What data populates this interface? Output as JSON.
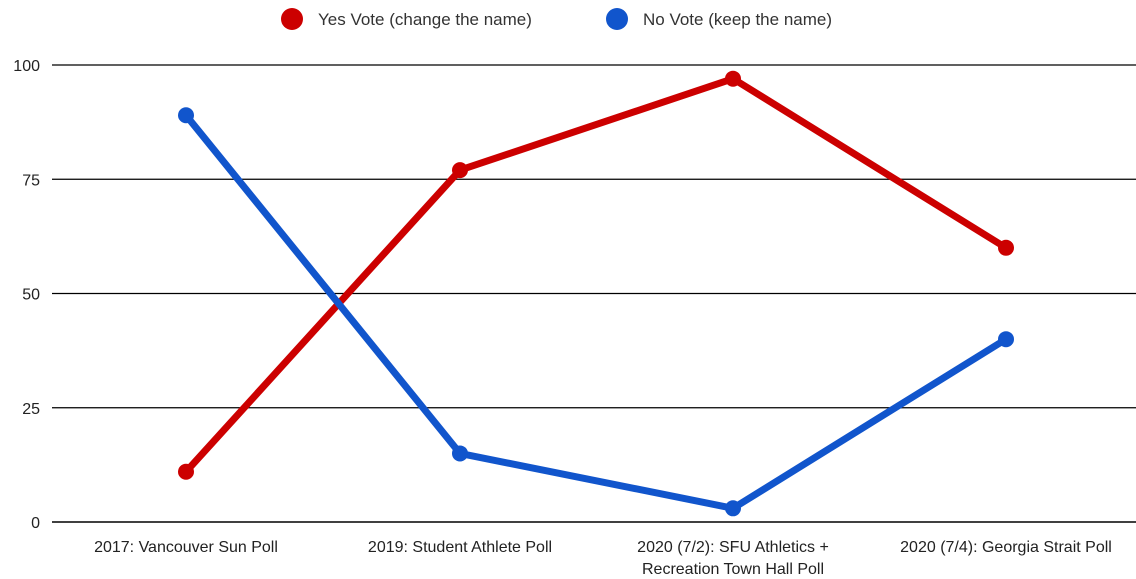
{
  "chart_data": {
    "type": "line",
    "categories": [
      "2017: Vancouver Sun Poll",
      "2019: Student Athlete Poll",
      "2020 (7/2): SFU Athletics + Recreation Town Hall Poll",
      "2020 (7/4): Georgia Strait Poll"
    ],
    "category_lines": [
      [
        "2017: Vancouver Sun Poll"
      ],
      [
        "2019: Student Athlete Poll"
      ],
      [
        "2020 (7/2): SFU Athletics +",
        "Recreation Town Hall Poll"
      ],
      [
        "2020 (7/4): Georgia Strait Poll"
      ]
    ],
    "series": [
      {
        "name": "Yes Vote (change the name)",
        "color": "#cc0000",
        "values": [
          11,
          77,
          97,
          60
        ]
      },
      {
        "name": "No Vote (keep the name)",
        "color": "#1155cc",
        "values": [
          89,
          15,
          3,
          40
        ]
      }
    ],
    "ylim": [
      0,
      100
    ],
    "yticks": [
      0,
      25,
      50,
      75,
      100
    ],
    "grid": true,
    "legend_position": "top"
  }
}
